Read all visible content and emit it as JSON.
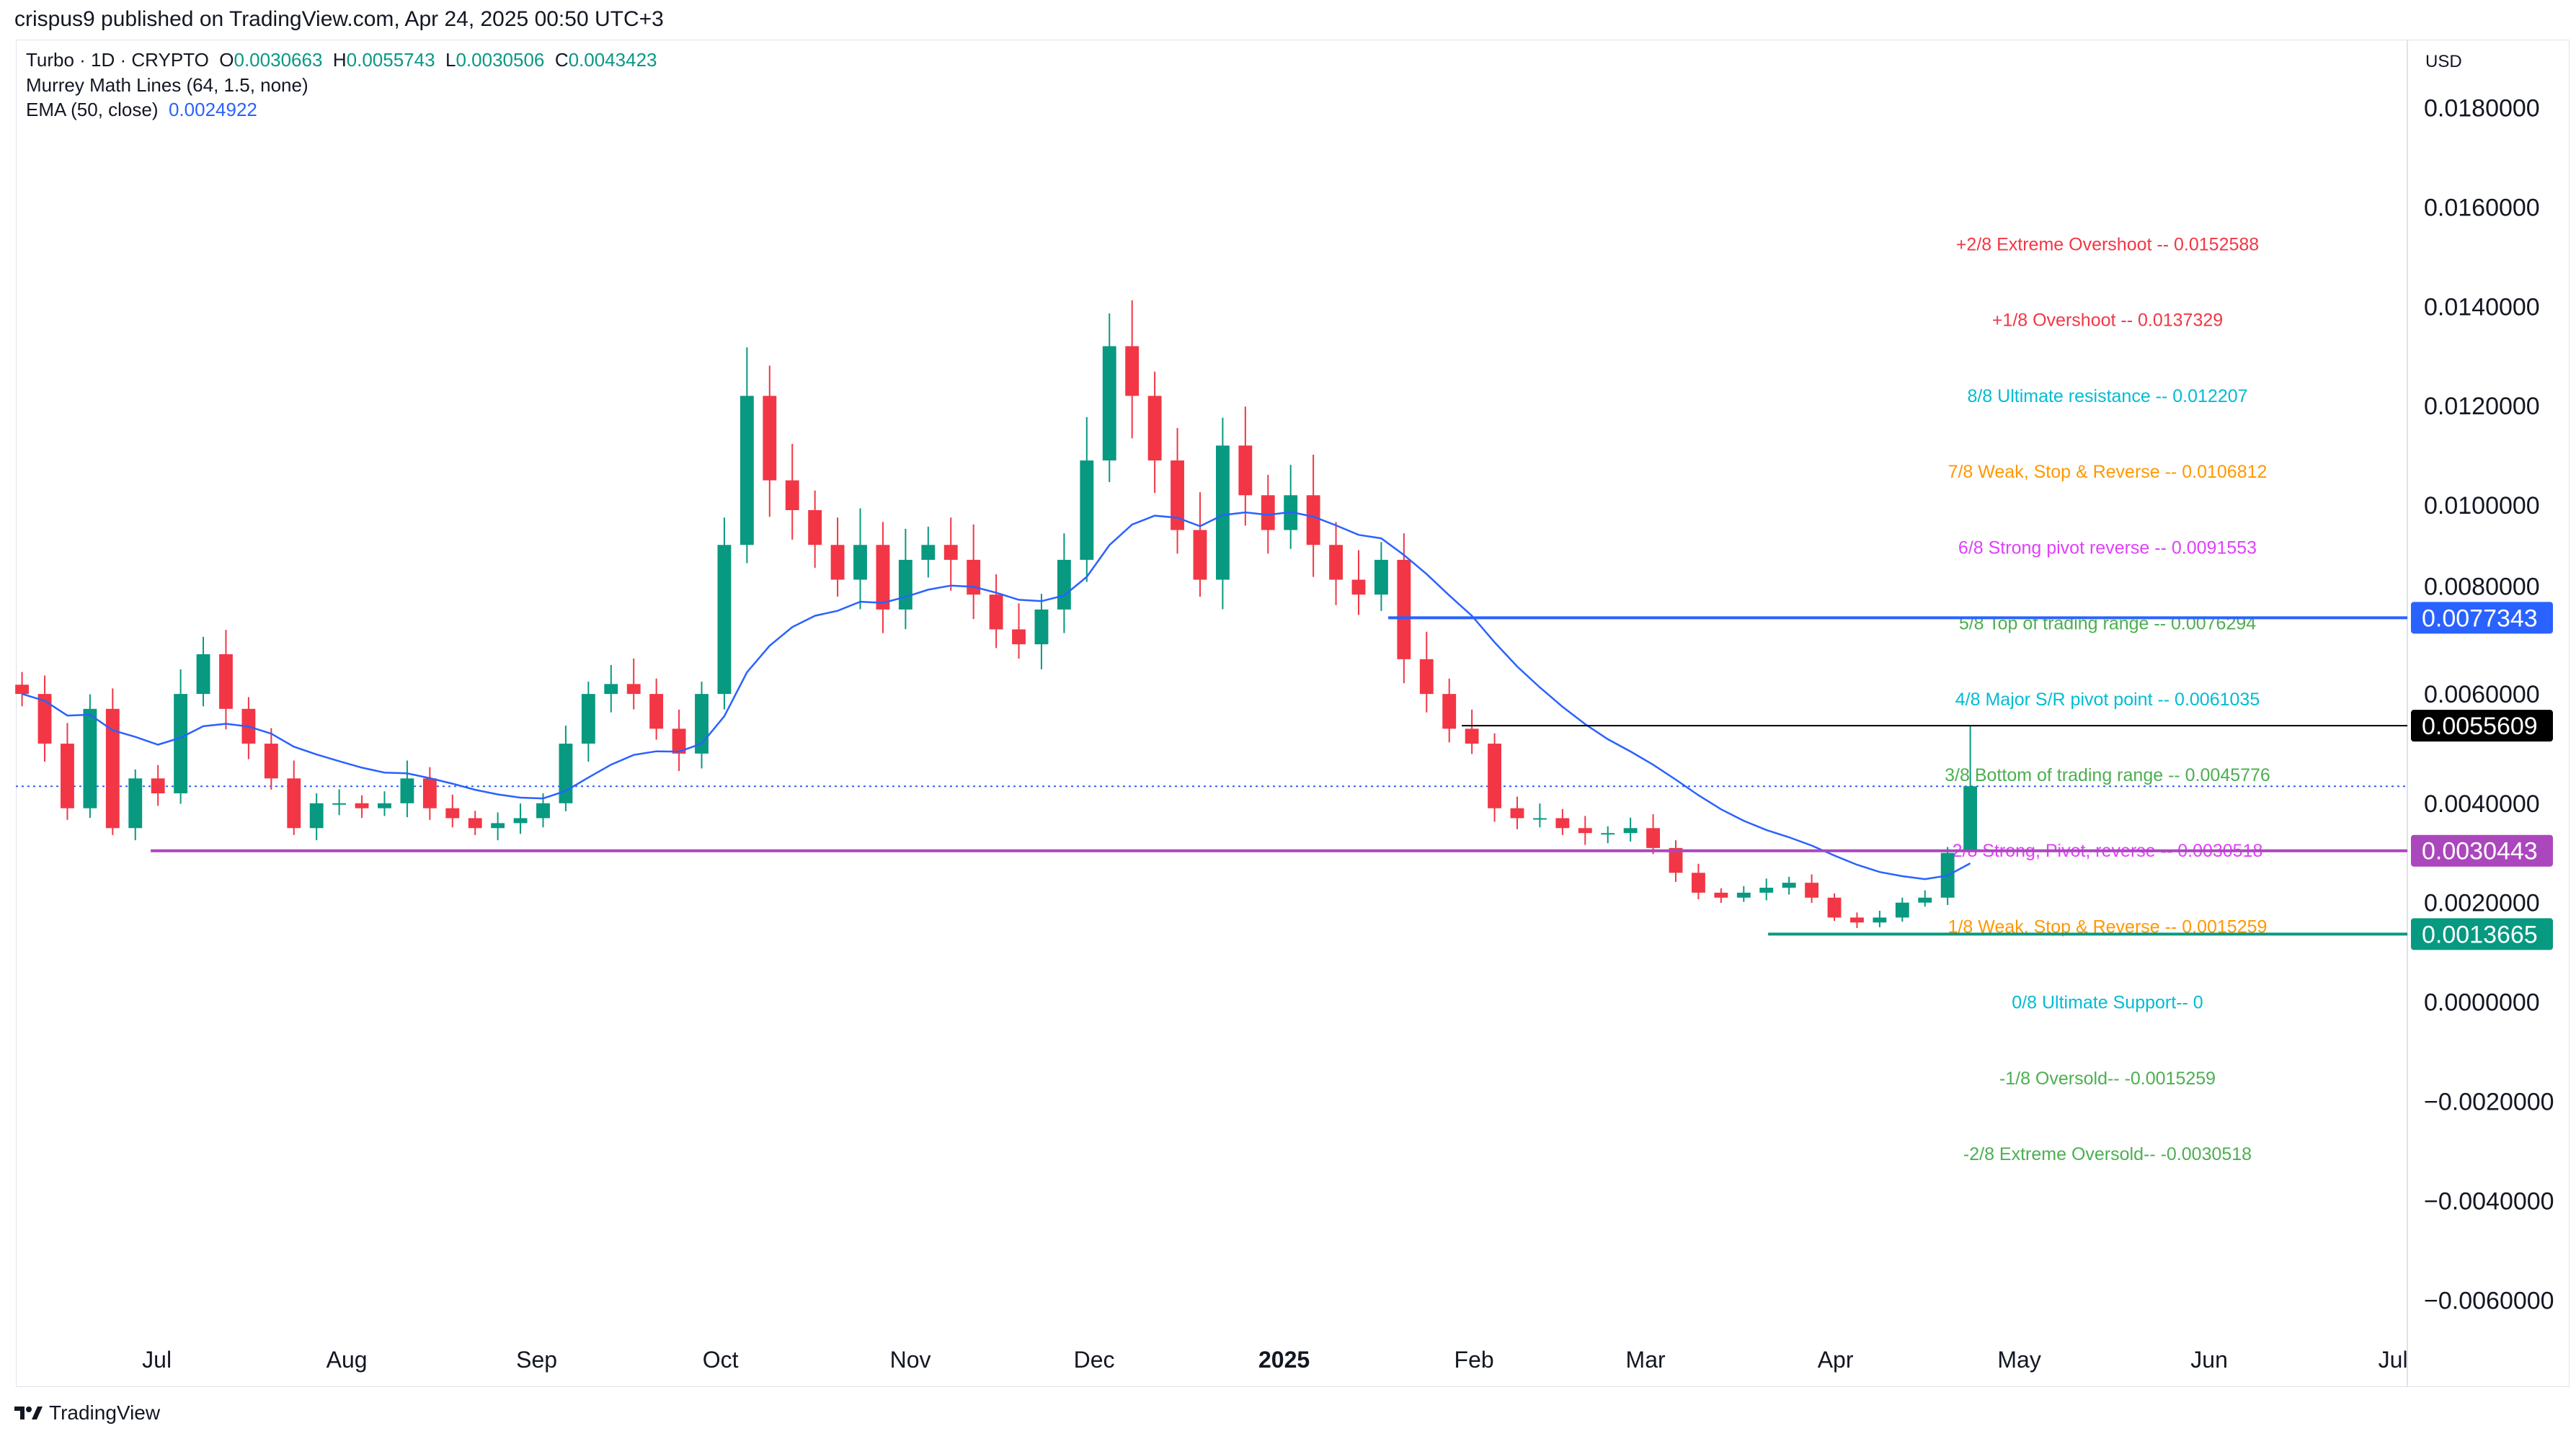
{
  "header": {
    "published": "crispus9 published on TradingView.com, Apr 24, 2025 00:50 UTC+3"
  },
  "legend": {
    "symbol": "Turbo · 1D · CRYPTO",
    "o_label": "O",
    "o": "0.0030663",
    "h_label": "H",
    "h": "0.0055743",
    "l_label": "L",
    "l": "0.0030506",
    "c_label": "C",
    "c": "0.0043423",
    "indicator1": "Murrey Math Lines (64, 1.5, none)",
    "indicator2": "EMA (50, close)",
    "ema_value": "0.0024922"
  },
  "currency": "USD",
  "footer": {
    "brand": "TradingView"
  },
  "colors": {
    "up": "#089981",
    "down": "#f23645",
    "ema": "#2962ff"
  },
  "chart_data": {
    "type": "candlestick",
    "start_date": "2024-06-09",
    "end_date": "2025-04-23",
    "closes": [
      0.0062,
      0.0052,
      0.0039,
      0.0059,
      0.0035,
      0.0045,
      0.0042,
      0.0062,
      0.007,
      0.0059,
      0.0052,
      0.0045,
      0.0035,
      0.004,
      0.004,
      0.0039,
      0.004,
      0.0045,
      0.0039,
      0.0037,
      0.0035,
      0.0036,
      0.0037,
      0.004,
      0.0052,
      0.0062,
      0.0064,
      0.0062,
      0.0055,
      0.005,
      0.0062,
      0.0092,
      0.0122,
      0.0105,
      0.0099,
      0.0092,
      0.0085,
      0.0092,
      0.0079,
      0.0089,
      0.0092,
      0.0089,
      0.0082,
      0.0075,
      0.0072,
      0.0079,
      0.0089,
      0.0109,
      0.0132,
      0.0122,
      0.0109,
      0.0095,
      0.0085,
      0.0112,
      0.0102,
      0.0095,
      0.0102,
      0.0092,
      0.0085,
      0.0082,
      0.0089,
      0.0069,
      0.0062,
      0.0055,
      0.0052,
      0.0039,
      0.0037,
      0.0037,
      0.0035,
      0.0034,
      0.0034,
      0.0035,
      0.0031,
      0.0026,
      0.0022,
      0.0021,
      0.0022,
      0.0023,
      0.0024,
      0.0021,
      0.0017,
      0.0016,
      0.0017,
      0.002,
      0.0021,
      0.003,
      0.0043423
    ],
    "last_candle": {
      "open": 0.0030663,
      "high": 0.0055743,
      "low": 0.0030506,
      "close": 0.0043423
    },
    "ema_period_days": 50,
    "y_ticks": [
      "0.0180000",
      "0.0160000",
      "0.0140000",
      "0.0120000",
      "0.0100000",
      "0.0080000",
      "0.0060000",
      "0.0040000",
      "0.0020000",
      "0.0000000",
      "−0.0020000",
      "−0.0040000",
      "−0.0060000"
    ],
    "y_tick_values": [
      0.018,
      0.016,
      0.014,
      0.012,
      0.01,
      0.008,
      0.006,
      0.004,
      0.002,
      0,
      -0.002,
      -0.004,
      -0.006
    ],
    "x_ticks": [
      {
        "label": "Jul",
        "date": "2024-07-01"
      },
      {
        "label": "Aug",
        "date": "2024-08-01"
      },
      {
        "label": "Sep",
        "date": "2024-09-01"
      },
      {
        "label": "Oct",
        "date": "2024-10-01"
      },
      {
        "label": "Nov",
        "date": "2024-11-01"
      },
      {
        "label": "Dec",
        "date": "2024-12-01"
      },
      {
        "label": "2025",
        "date": "2025-01-01",
        "bold": true
      },
      {
        "label": "Feb",
        "date": "2025-02-01"
      },
      {
        "label": "Mar",
        "date": "2025-03-01"
      },
      {
        "label": "Apr",
        "date": "2025-04-01"
      },
      {
        "label": "May",
        "date": "2025-05-01"
      },
      {
        "label": "Jun",
        "date": "2025-06-01"
      },
      {
        "label": "Jul",
        "date": "2025-07-01"
      }
    ],
    "murrey_levels": [
      {
        "text": "+2/8 Extreme Overshoot --  0.0152588",
        "price": 0.0152588,
        "color": "#f23645"
      },
      {
        "text": "+1/8 Overshoot --  0.0137329",
        "price": 0.0137329,
        "color": "#f23645"
      },
      {
        "text": "8/8 Ultimate resistance --  0.012207",
        "price": 0.012207,
        "color": "#00bcd4"
      },
      {
        "text": "7/8 Weak, Stop & Reverse --  0.0106812",
        "price": 0.0106812,
        "color": "#ff9800"
      },
      {
        "text": "6/8 Strong pivot reverse --  0.0091553",
        "price": 0.0091553,
        "color": "#e040fb"
      },
      {
        "text": "5/8 Top of trading range --  0.0076294",
        "price": 0.0076294,
        "color": "#4caf50"
      },
      {
        "text": "4/8 Major S/R pivot point --  0.0061035",
        "price": 0.0061035,
        "color": "#00bcd4"
      },
      {
        "text": "3/8 Bottom of trading range --  0.0045776",
        "price": 0.0045776,
        "color": "#4caf50"
      },
      {
        "text": "2/8 Strong, Pivot, reverse --  0.0030518",
        "price": 0.0030518,
        "color": "#e040fb"
      },
      {
        "text": "1/8 Weak, Stop & Reverse --  0.0015259",
        "price": 0.0015259,
        "color": "#ff9800"
      },
      {
        "text": "0/8 Ultimate Support--  0",
        "price": 0,
        "color": "#00bcd4"
      },
      {
        "text": "-1/8 Oversold--  -0.0015259",
        "price": -0.0015259,
        "color": "#4caf50"
      },
      {
        "text": "-2/8 Extreme Oversold--  -0.0030518",
        "price": -0.0030518,
        "color": "#4caf50"
      }
    ],
    "horizontal_lines": [
      {
        "label": "0.0077343",
        "price": 0.0077343,
        "color": "#2962ff",
        "from": "2025-01-18"
      },
      {
        "label": "0.0055609",
        "price": 0.0055609,
        "color": "#000000",
        "from": "2025-01-30"
      },
      {
        "label": "0.0030443",
        "price": 0.0030443,
        "color": "#ab47bc",
        "from": "2024-06-30"
      },
      {
        "label": "0.0013665",
        "price": 0.0013665,
        "color": "#089981",
        "from": "2025-03-21"
      }
    ],
    "current_price": 0.0043423
  }
}
